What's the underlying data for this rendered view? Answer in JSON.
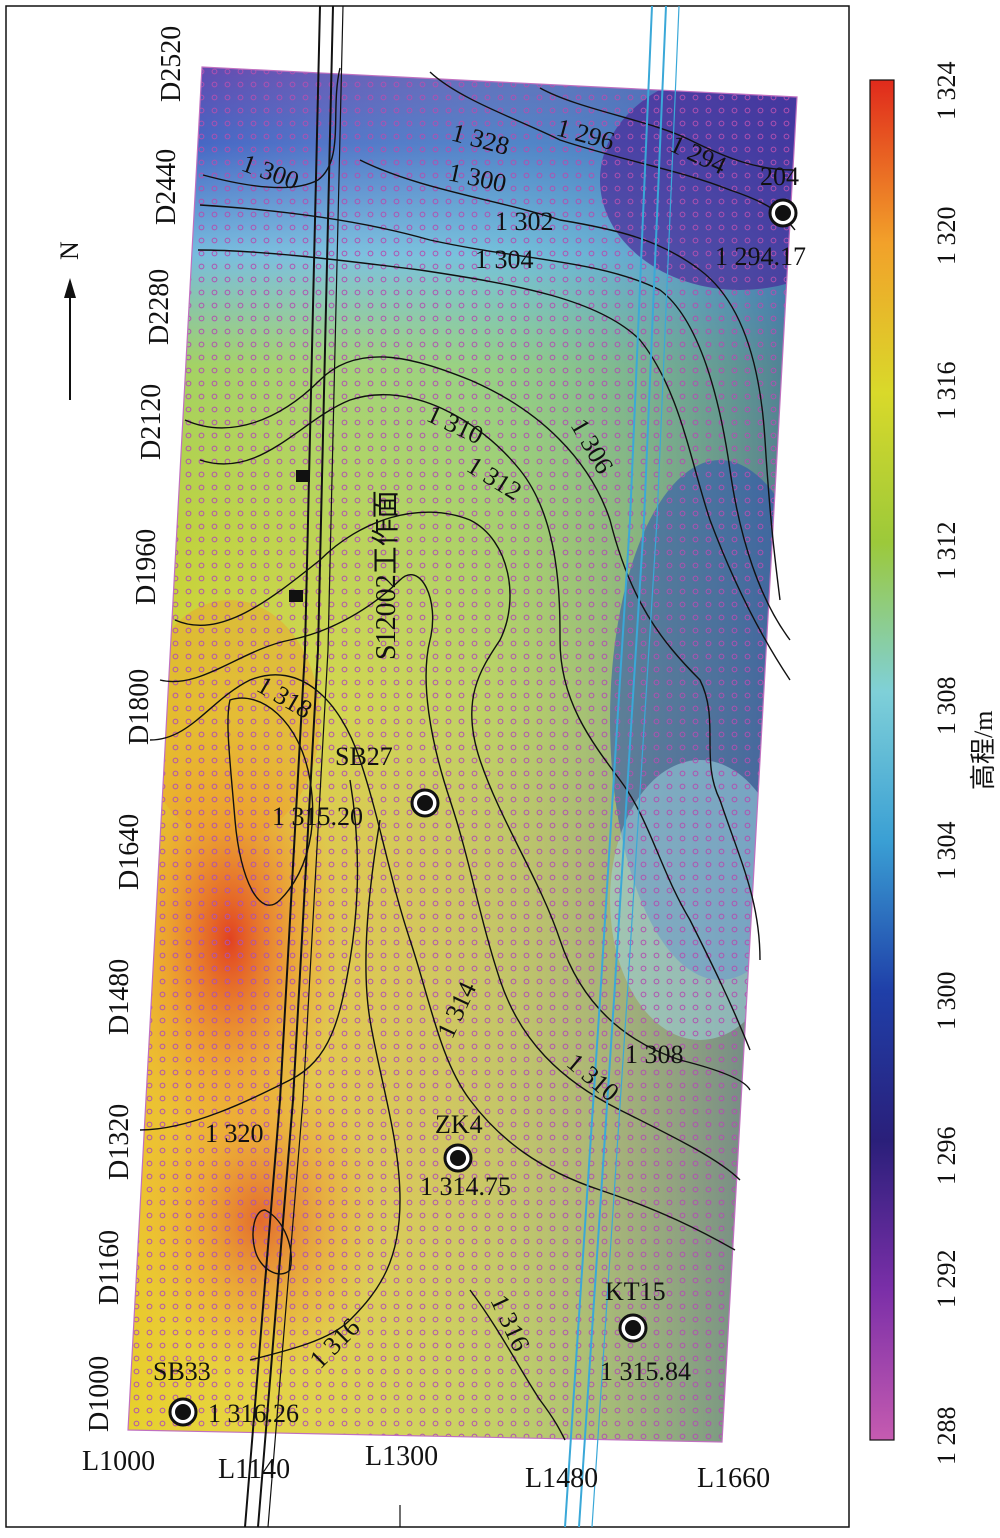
{
  "north": {
    "label": "N",
    "icon": "north-arrow-icon"
  },
  "tunnel": {
    "label": "S12002工作面"
  },
  "colorbar": {
    "title": "高程/m",
    "ticks": [
      "1 288",
      "1 292",
      "1 296",
      "1 300",
      "1 304",
      "1 308",
      "1 312",
      "1 316",
      "1 320",
      "1 324"
    ],
    "colors": [
      "#c55bb0",
      "#7b2fa8",
      "#2a1f7a",
      "#1f3fa8",
      "#3a9fd4",
      "#7fd0d8",
      "#9cc93a",
      "#d9d92a",
      "#f2a12a",
      "#e02a1c"
    ]
  },
  "axis_d": [
    "D1000",
    "D1160",
    "D1320",
    "D1480",
    "D1640",
    "D1800",
    "D1960",
    "D2120",
    "D2280",
    "D2440",
    "D2520"
  ],
  "axis_l": [
    "L1000",
    "L1140",
    "L1300",
    "L1480",
    "L1660"
  ],
  "contour_labels": [
    "1 300",
    "1 328",
    "1 296",
    "1 294",
    "1 300",
    "1 302",
    "1 304",
    "1 310",
    "1 312",
    "1 306",
    "1 318",
    "1 314",
    "1 308",
    "1 310",
    "1 320",
    "1 316",
    "1 316"
  ],
  "wells": [
    {
      "name": "204",
      "value": "1 294.17"
    },
    {
      "name": "SB27",
      "value": "1 315.20"
    },
    {
      "name": "ZK4",
      "value": "1 314.75"
    },
    {
      "name": "KT15",
      "value": "1 315.84"
    },
    {
      "name": "SB33",
      "value": "1 316.26"
    }
  ]
}
